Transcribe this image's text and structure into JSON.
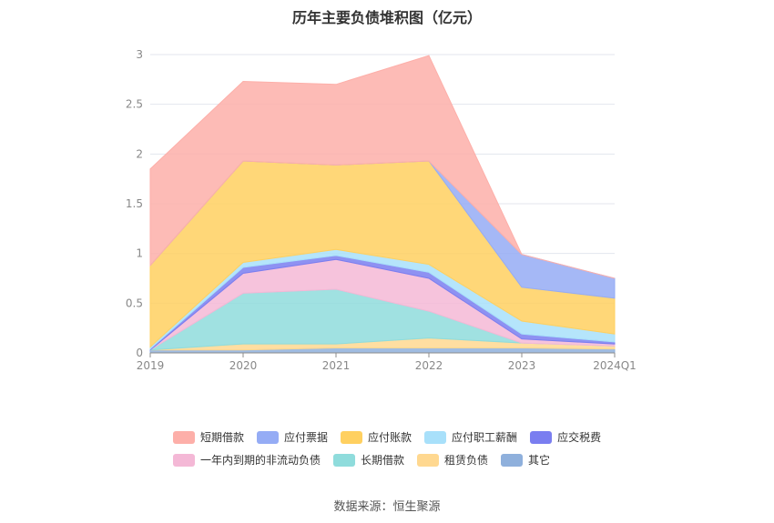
{
  "chart_data": {
    "type": "area",
    "stacked": true,
    "title": "历年主要负债堆积图（亿元）",
    "categories": [
      "2019",
      "2020",
      "2021",
      "2022",
      "2023",
      "2024Q1"
    ],
    "ylim": [
      0,
      3
    ],
    "yticks": [
      0,
      0.5,
      1,
      1.5,
      2,
      2.5,
      3
    ],
    "grid": true,
    "legend_position": "bottom",
    "series": [
      {
        "name": "其它",
        "color": "#8fb0dc",
        "values": [
          0.03,
          0.03,
          0.05,
          0.05,
          0.05,
          0.04
        ]
      },
      {
        "name": "租赁负债",
        "color": "#ffd890",
        "values": [
          0.0,
          0.06,
          0.04,
          0.1,
          0.05,
          0.03
        ]
      },
      {
        "name": "长期借款",
        "color": "#8fdcdc",
        "values": [
          0.0,
          0.51,
          0.55,
          0.27,
          0.0,
          0.0
        ]
      },
      {
        "name": "一年内到期的非流动负债",
        "color": "#f4b8d6",
        "values": [
          0.0,
          0.2,
          0.3,
          0.33,
          0.04,
          0.02
        ]
      },
      {
        "name": "应交税费",
        "color": "#7a7ef0",
        "values": [
          0.01,
          0.06,
          0.04,
          0.06,
          0.05,
          0.02
        ]
      },
      {
        "name": "应付职工薪酬",
        "color": "#a8e0fa",
        "values": [
          0.02,
          0.05,
          0.06,
          0.08,
          0.13,
          0.08
        ]
      },
      {
        "name": "应付账款",
        "color": "#ffd060",
        "values": [
          0.82,
          1.02,
          0.85,
          1.04,
          0.34,
          0.36
        ]
      },
      {
        "name": "应付票据",
        "color": "#95acf5",
        "values": [
          0.0,
          0.0,
          0.0,
          0.0,
          0.33,
          0.2
        ]
      },
      {
        "name": "短期借款",
        "color": "#fdafa9",
        "values": [
          0.97,
          0.8,
          0.81,
          1.06,
          0.0,
          0.0
        ]
      }
    ],
    "legend_rows": [
      [
        "短期借款",
        "应付票据",
        "应付账款",
        "应付职工薪酬",
        "应交税费"
      ],
      [
        "一年内到期的非流动负债",
        "长期借款",
        "租赁负债",
        "其它"
      ]
    ]
  },
  "footer": {
    "source": "数据来源：恒生聚源"
  }
}
